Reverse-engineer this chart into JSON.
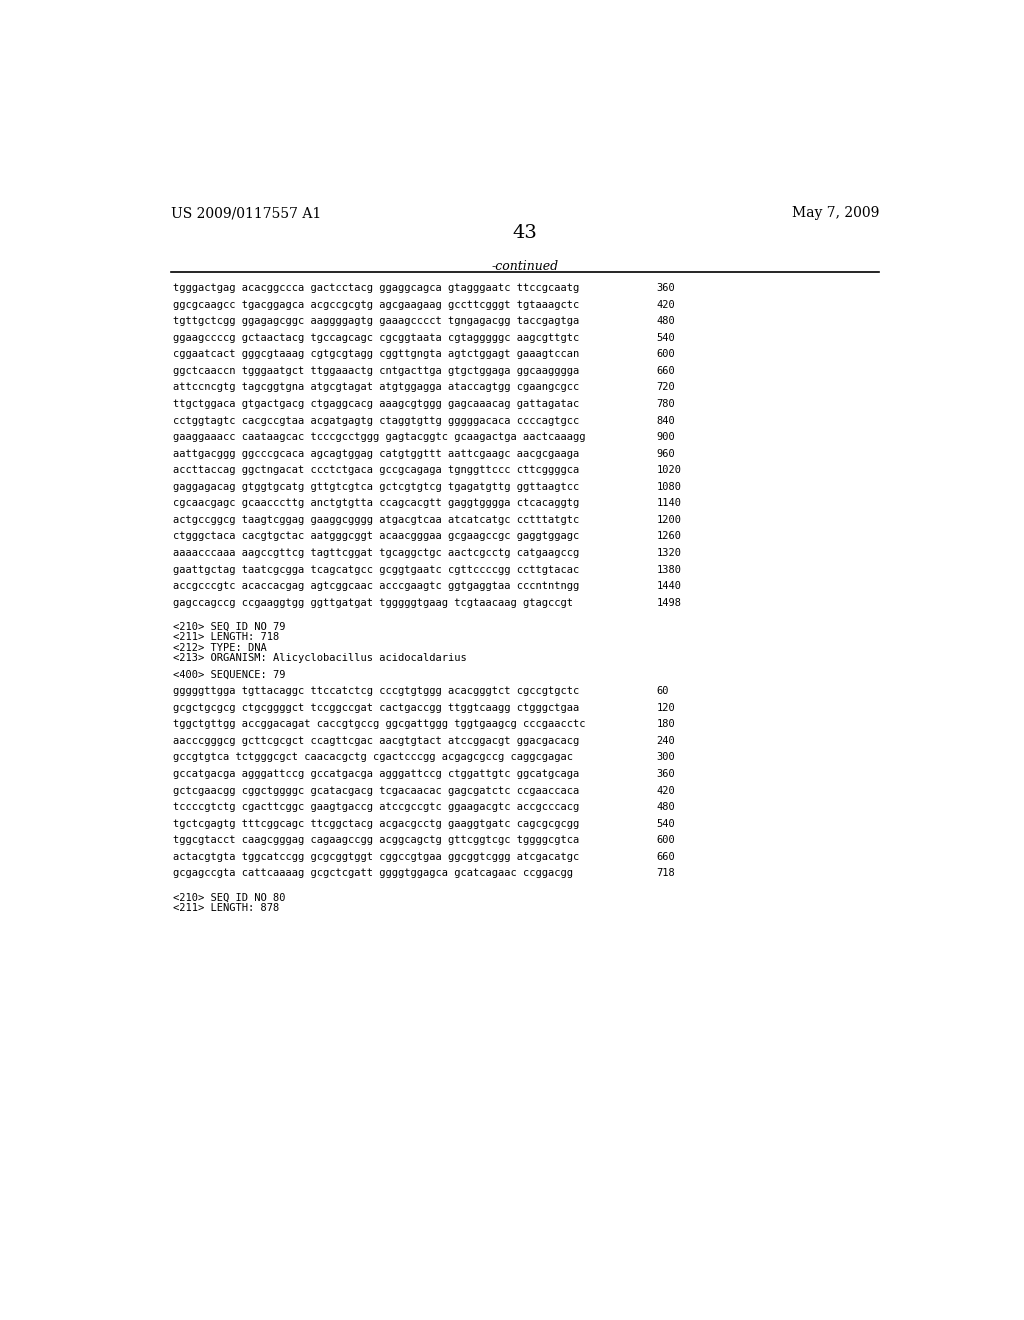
{
  "header_left": "US 2009/0117557 A1",
  "header_right": "May 7, 2009",
  "page_number": "43",
  "continued_label": "-continued",
  "bg_color": "#ffffff",
  "text_color": "#000000",
  "sequence_lines": [
    [
      "tgggactgag acacggccca gactcctacg ggaggcagca gtagggaatc ttccgcaatg",
      "360"
    ],
    [
      "ggcgcaagcc tgacggagca acgccgcgtg agcgaagaag gccttcgggt tgtaaagctc",
      "420"
    ],
    [
      "tgttgctcgg ggagagcggc aaggggagtg gaaagcccct tgngagacgg taccgagtga",
      "480"
    ],
    [
      "ggaagccccg gctaactacg tgccagcagc cgcggtaata cgtagggggc aagcgttgtc",
      "540"
    ],
    [
      "cggaatcact gggcgtaaag cgtgcgtagg cggttgngta agtctggagt gaaagtccan",
      "600"
    ],
    [
      "ggctcaaccn tgggaatgct ttggaaactg cntgacttga gtgctggaga ggcaagggga",
      "660"
    ],
    [
      "attccncgtg tagcggtgna atgcgtagat atgtggagga ataccagtgg cgaangcgcc",
      "720"
    ],
    [
      "ttgctggaca gtgactgacg ctgaggcacg aaagcgtggg gagcaaacag gattagatac",
      "780"
    ],
    [
      "cctggtagtc cacgccgtaa acgatgagtg ctaggtgttg gggggacaca ccccagtgcc",
      "840"
    ],
    [
      "gaaggaaacc caataagcac tcccgcctggg gagtacggtc gcaagactga aactcaaagg",
      "900"
    ],
    [
      "aattgacggg ggcccgcaca agcagtggag catgtggttt aattcgaagc aacgcgaaga",
      "960"
    ],
    [
      "accttaccag ggctngacat ccctctgaca gccgcagaga tgnggttccc cttcggggca",
      "1020"
    ],
    [
      "gaggagacag gtggtgcatg gttgtcgtca gctcgtgtcg tgagatgttg ggttaagtcc",
      "1080"
    ],
    [
      "cgcaacgagc gcaacccttg anctgtgtta ccagcacgtt gaggtgggga ctcacaggtg",
      "1140"
    ],
    [
      "actgccggcg taagtcggag gaaggcgggg atgacgtcaa atcatcatgc cctttatgtc",
      "1200"
    ],
    [
      "ctgggctaca cacgtgctac aatgggcggt acaacgggaa gcgaagccgc gaggtggagc",
      "1260"
    ],
    [
      "aaaacccaaa aagccgttcg tagttcggat tgcaggctgc aactcgcctg catgaagccg",
      "1320"
    ],
    [
      "gaattgctag taatcgcgga tcagcatgcc gcggtgaatc cgttccccgg ccttgtacac",
      "1380"
    ],
    [
      "accgcccgtc acaccacgag agtcggcaac acccgaagtc ggtgaggtaa cccntntngg",
      "1440"
    ],
    [
      "gagccagccg ccgaaggtgg ggttgatgat tgggggtgaag tcgtaacaag gtagccgt",
      "1498"
    ]
  ],
  "metadata_block": [
    "<210> SEQ ID NO 79",
    "<211> LENGTH: 718",
    "<212> TYPE: DNA",
    "<213> ORGANISM: Alicyclobacillus acidocaldarius"
  ],
  "sequence_label": "<400> SEQUENCE: 79",
  "sequence_lines2": [
    [
      "gggggttgga tgttacaggc ttccatctcg cccgtgtggg acacgggtct cgccgtgctc",
      "60"
    ],
    [
      "gcgctgcgcg ctgcggggct tccggccgat cactgaccgg ttggtcaagg ctgggctgaa",
      "120"
    ],
    [
      "tggctgttgg accggacagat caccgtgccg ggcgattggg tggtgaagcg cccgaacctc",
      "180"
    ],
    [
      "aacccgggcg gcttcgcgct ccagttcgac aacgtgtact atccggacgt ggacgacacg",
      "240"
    ],
    [
      "gccgtgtca tctgggcgct caacacgctg cgactcccgg acgagcgccg caggcgagac",
      "300"
    ],
    [
      "gccatgacga agggattccg gccatgacga agggattccg ctggattgtc ggcatgcaga",
      "360"
    ],
    [
      "gctcgaacgg cggctggggc gcatacgacg tcgacaacac gagcgatctc ccgaaccaca",
      "420"
    ],
    [
      "tccccgtctg cgacttcggc gaagtgaccg atccgccgtc ggaagacgtc accgcccacg",
      "480"
    ],
    [
      "tgctcgagtg tttcggcagc ttcggctacg acgacgcctg gaaggtgatc cagcgcgcgg",
      "540"
    ],
    [
      "tggcgtacct caagcgggag cagaagccgg acggcagctg gttcggtcgc tggggcgtca",
      "600"
    ],
    [
      "actacgtgta tggcatccgg gcgcggtggt cggccgtgaa ggcggtcggg atcgacatgc",
      "660"
    ],
    [
      "gcgagccgta cattcaaaag gcgctcgatt ggggtggagca gcatcagaac ccggacgg",
      "718"
    ]
  ],
  "footer_lines": [
    "<210> SEQ ID NO 80",
    "<211> LENGTH: 878"
  ],
  "header_fontsize": 10,
  "pagenum_fontsize": 14,
  "continued_fontsize": 9,
  "mono_fontsize": 7.5,
  "meta_fontsize": 7.5
}
